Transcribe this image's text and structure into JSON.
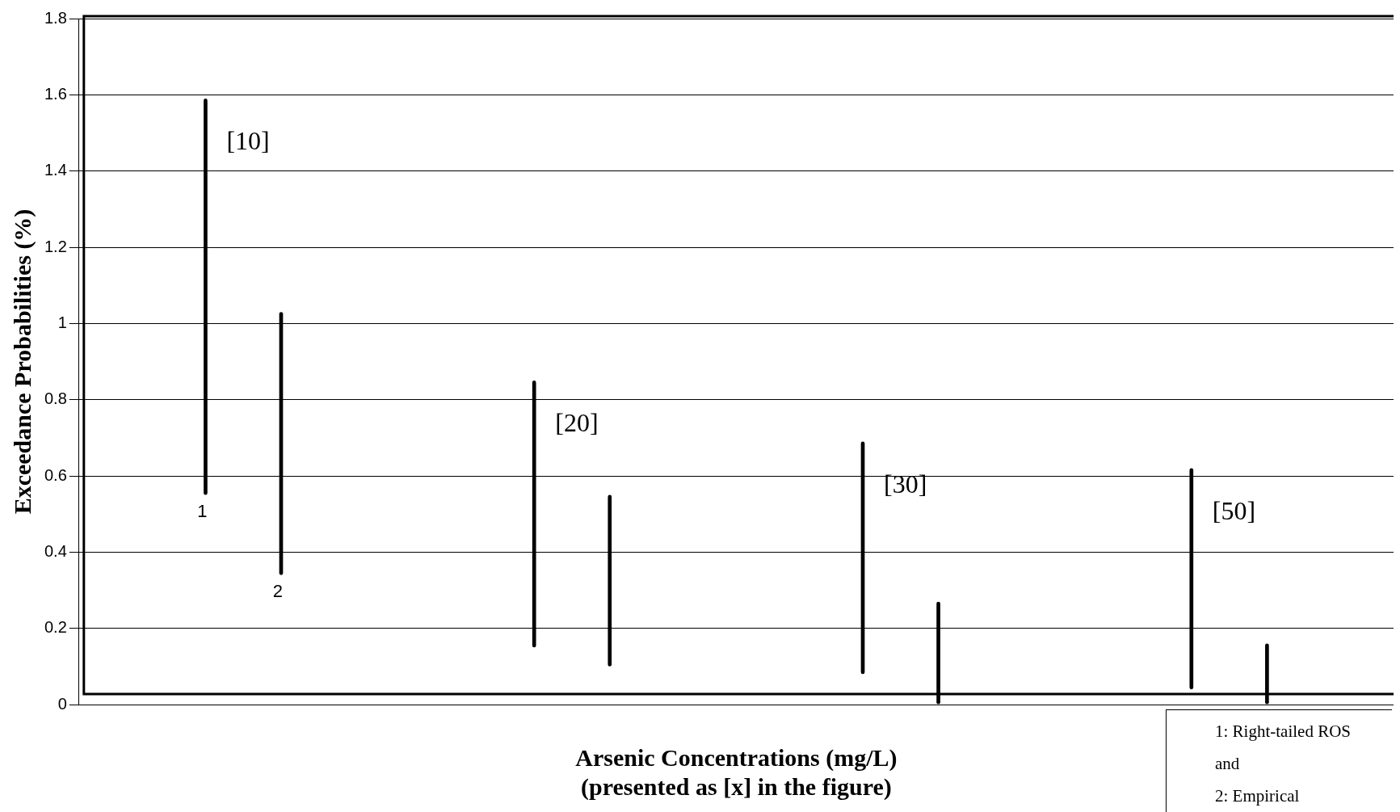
{
  "chart_data": {
    "type": "bar",
    "xlabel": "Arsenic Concentrations (mg/L)\n(presented as [x] in the figure)",
    "ylabel": "Exceedance Probabilities (%)",
    "categories": [
      null,
      null,
      null,
      null
    ],
    "series": [
      {
        "name": "1",
        "color": "#000000",
        "base": [
          0.55,
          0.15,
          0.08,
          0.04
        ],
        "values": [
          1.04,
          0.7,
          0.61,
          0.58
        ]
      },
      {
        "name": "2",
        "color": "#000000",
        "base": [
          0.34,
          0.1,
          0,
          0
        ],
        "values": [
          0.69,
          0.45,
          0.27,
          0.16
        ]
      }
    ],
    "ylim": [
      0,
      1.8
    ],
    "yticks": [
      0,
      0.2,
      0.4,
      0.6,
      0.8,
      1,
      1.2,
      1.4,
      1.6,
      1.8
    ],
    "grid": "y",
    "legend": false,
    "annotations": [
      "[10]",
      "[20]",
      "[30]",
      "[50]",
      "1:  Right-tailed ROS",
      "and",
      "2:  Empirical"
    ]
  }
}
